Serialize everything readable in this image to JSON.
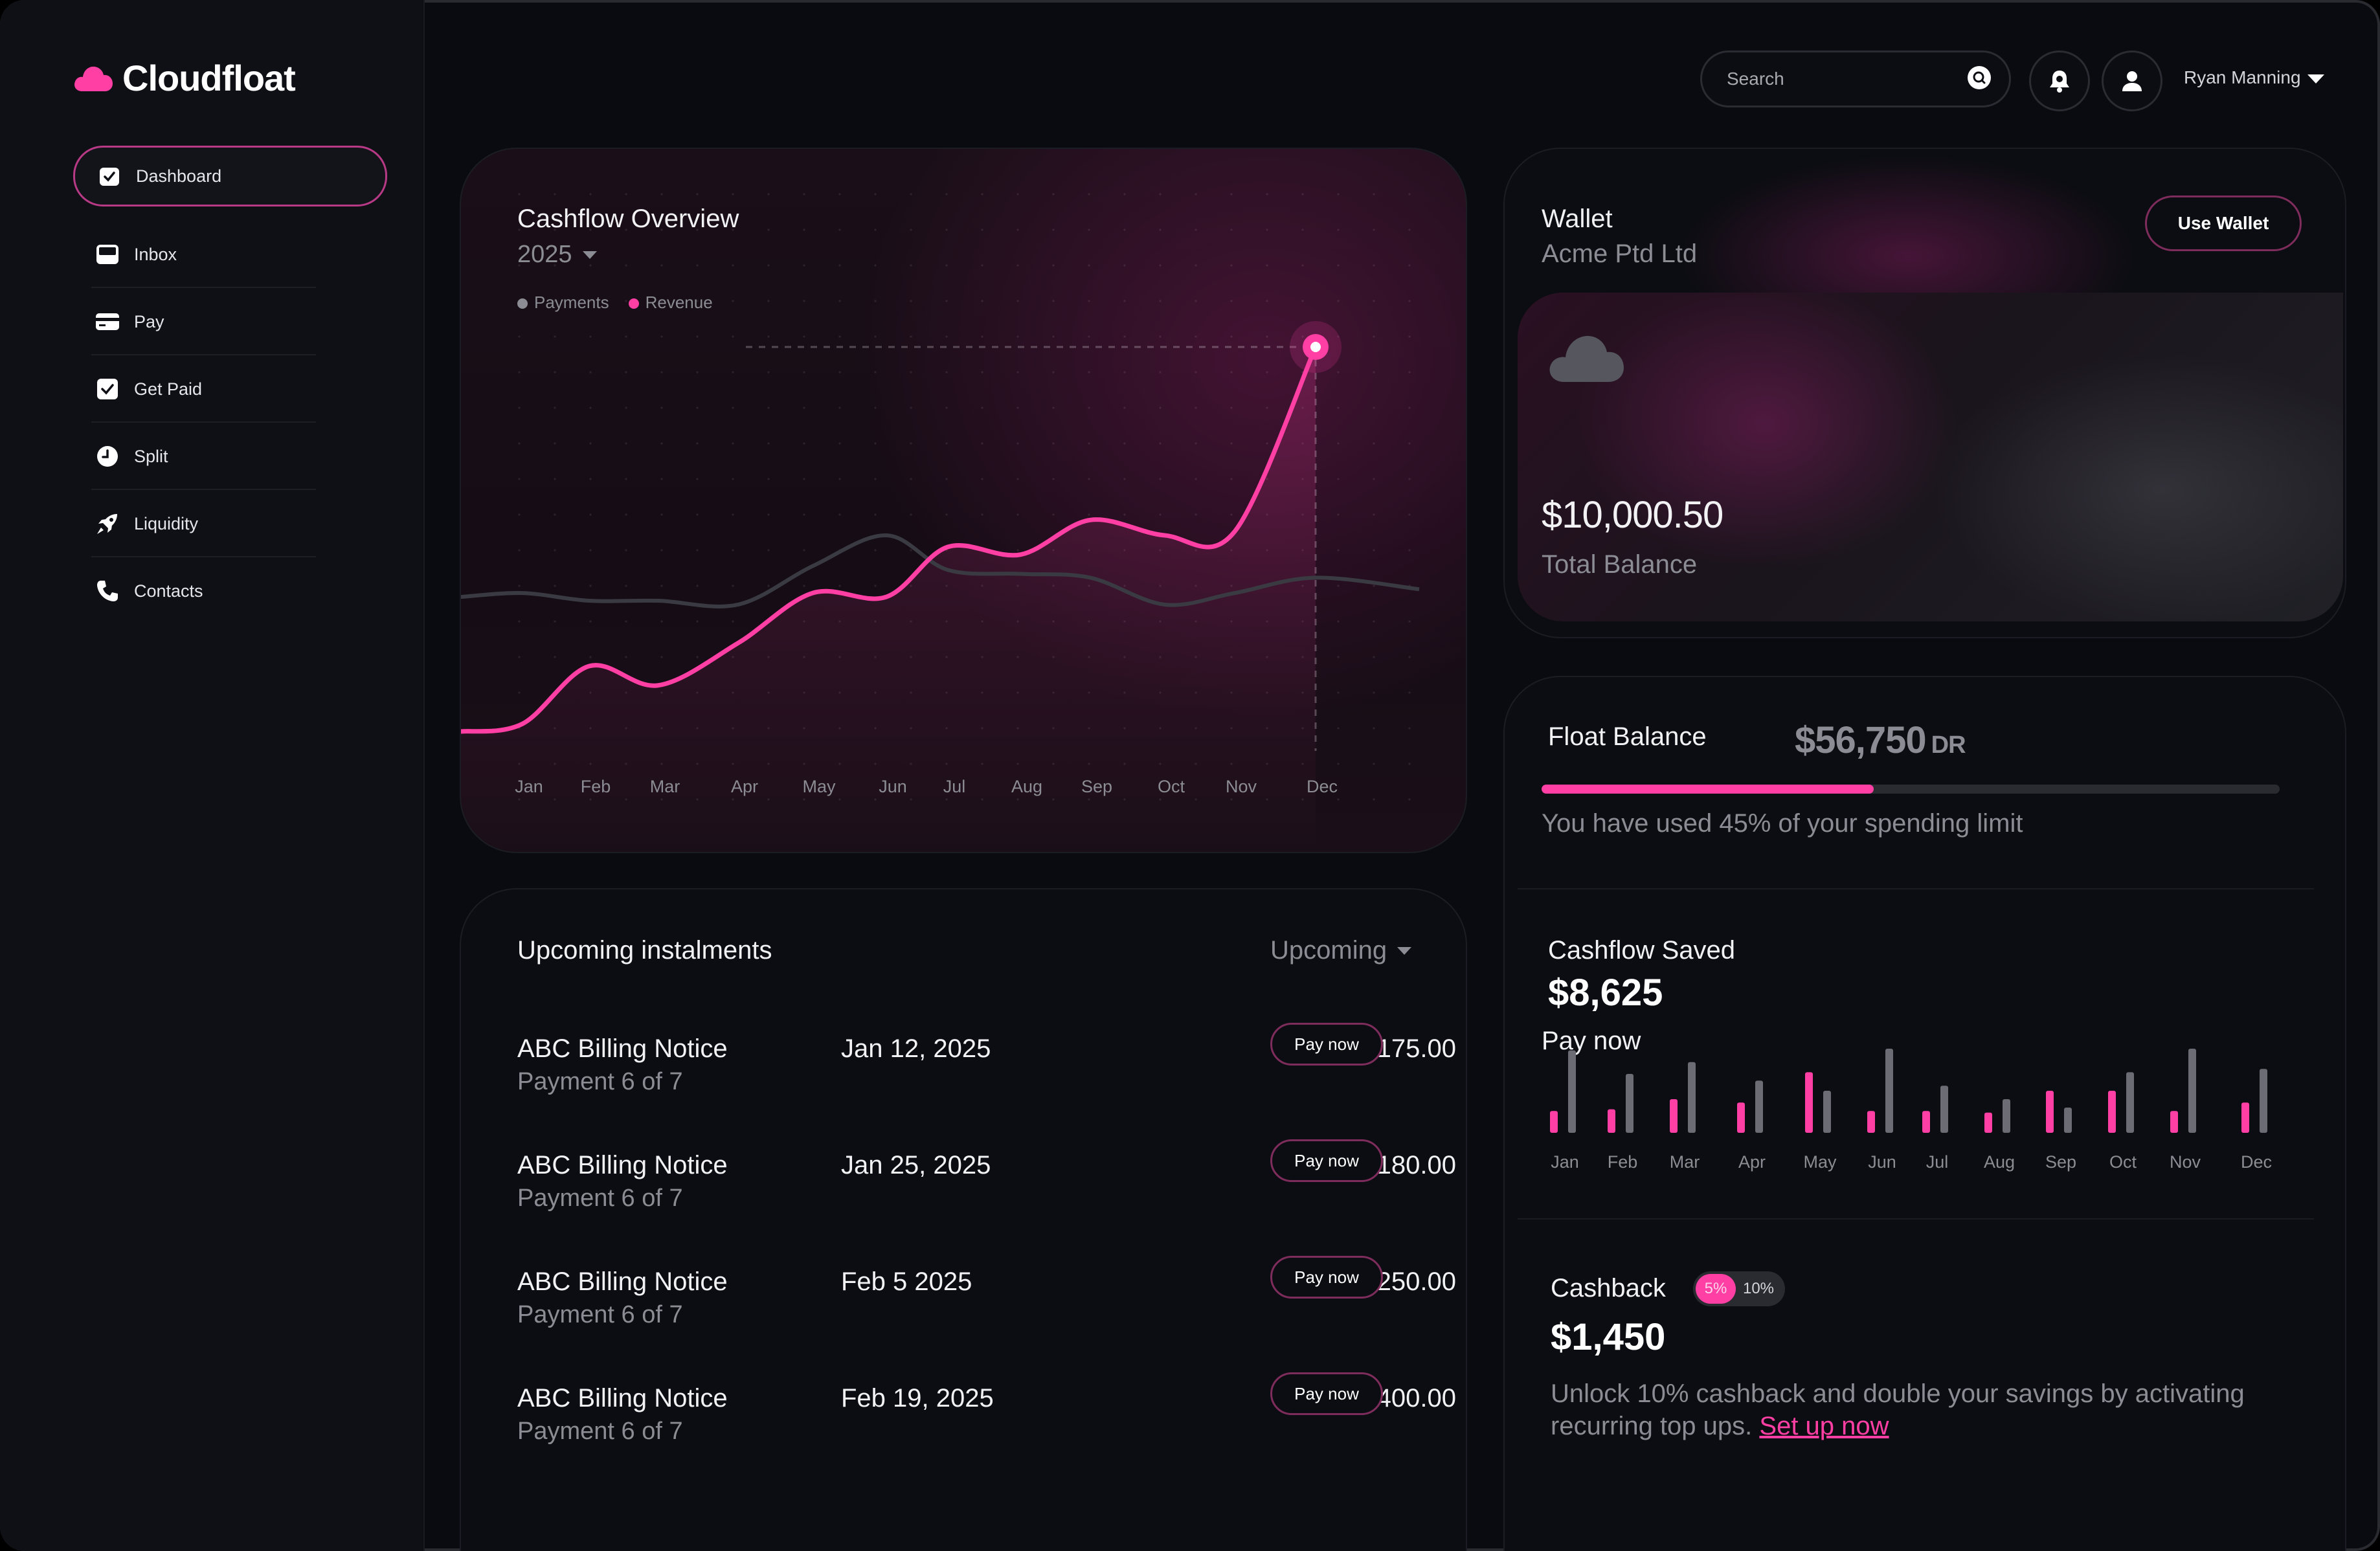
{
  "app": {
    "name": "Cloudfloat"
  },
  "sidebar": {
    "items": [
      {
        "label": "Dashboard",
        "icon": "dashboard-icon"
      },
      {
        "label": "Inbox",
        "icon": "inbox-icon"
      },
      {
        "label": "Pay",
        "icon": "card-icon"
      },
      {
        "label": "Get Paid",
        "icon": "check-icon"
      },
      {
        "label": "Split",
        "icon": "split-icon"
      },
      {
        "label": "Liquidity",
        "icon": "rocket-icon"
      },
      {
        "label": "Contacts",
        "icon": "phone-icon"
      }
    ]
  },
  "header": {
    "search_placeholder": "Search",
    "user_name": "Ryan Manning"
  },
  "cashflow": {
    "title": "Cashflow Overview",
    "year": "2025",
    "legend": [
      "Payments",
      "Revenue"
    ]
  },
  "instalments": {
    "title": "Upcoming instalments",
    "filter": "Upcoming",
    "rows": [
      {
        "name": "ABC Billing Notice",
        "sub": "Payment 6 of 7",
        "date": "Jan 12, 2025",
        "amount": "$175.00",
        "action": "Pay now"
      },
      {
        "name": "ABC Billing Notice",
        "sub": "Payment 6 of 7",
        "date": "Jan 25, 2025",
        "amount": "$180.00",
        "action": "Pay now"
      },
      {
        "name": "ABC Billing Notice",
        "sub": "Payment 6 of 7",
        "date": "Feb 5 2025",
        "amount": "$250.00",
        "action": "Pay now"
      },
      {
        "name": "ABC Billing Notice",
        "sub": "Payment 6 of 7",
        "date": "Feb 19, 2025",
        "amount": "$400.00",
        "action": "Pay now"
      }
    ]
  },
  "wallet": {
    "title": "Wallet",
    "company": "Acme Ptd Ltd",
    "button": "Use Wallet",
    "balance": "$10,000.50",
    "balance_label": "Total Balance"
  },
  "float": {
    "title": "Float Balance",
    "amount": "$56,750",
    "amount_suffix": "DR",
    "used_fraction": 0.45,
    "note": "You have used 45% of your spending limit"
  },
  "savings": {
    "title": "Cashflow Saved",
    "amount": "$8,625",
    "subtitle": "Pay now"
  },
  "cashback": {
    "title": "Cashback",
    "options": [
      "5%",
      "10%"
    ],
    "selected": "5%",
    "amount": "$1,450",
    "text": "Unlock 10% cashback and double your savings by activating recurring top ups.",
    "link": "Set up now"
  },
  "colors": {
    "accent": "#ff3fa4",
    "muted": "#8b8c94",
    "background": "#0a0b10"
  },
  "chart_data": [
    {
      "type": "line",
      "title": "Cashflow Overview",
      "categories": [
        "Jan",
        "Feb",
        "Mar",
        "Apr",
        "May",
        "Jun",
        "Jul",
        "Aug",
        "Sep",
        "Oct",
        "Nov",
        "Dec"
      ],
      "series": [
        {
          "name": "Payments",
          "values": [
            3.6,
            3.4,
            3.4,
            3.3,
            4.3,
            5.1,
            4.2,
            4.1,
            4.0,
            3.3,
            3.6,
            4.0
          ]
        },
        {
          "name": "Revenue",
          "values": [
            0.2,
            1.7,
            1.2,
            2.3,
            3.6,
            3.5,
            4.8,
            4.6,
            5.5,
            5.1,
            5.2,
            10.0
          ]
        }
      ],
      "ylim": [
        0,
        10
      ],
      "grid": true,
      "legend": "top-left"
    },
    {
      "type": "bar",
      "title": "Cashflow Saved",
      "categories": [
        "Jan",
        "Feb",
        "Mar",
        "Apr",
        "May",
        "Jun",
        "Jul",
        "Aug",
        "Sep",
        "Oct",
        "Nov",
        "Dec"
      ],
      "series": [
        {
          "values": [
            26,
            28,
            40,
            36,
            72,
            26,
            26,
            24,
            50,
            50,
            26,
            36
          ]
        },
        {
          "values": [
            98,
            70,
            84,
            62,
            50,
            100,
            56,
            40,
            30,
            72,
            100,
            76
          ]
        }
      ],
      "ylim": [
        0,
        100
      ],
      "grid": false
    }
  ]
}
